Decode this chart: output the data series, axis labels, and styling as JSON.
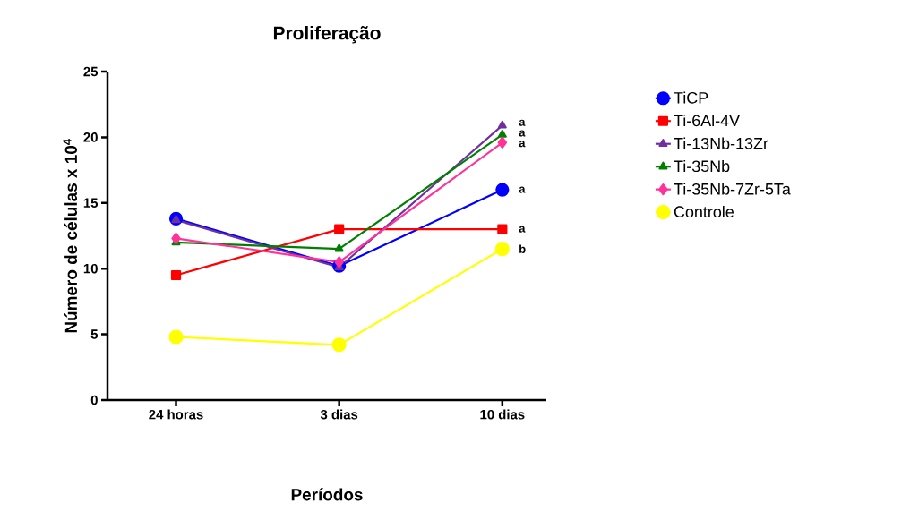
{
  "chart_data": {
    "type": "line",
    "title": "Proliferação",
    "xlabel": "Períodos",
    "ylabel": "Número de células x 10$^{4}$",
    "categories": [
      "24 horas",
      "3 dias",
      "10 dias"
    ],
    "series": [
      {
        "name": "TiCP",
        "color": "#0000ff",
        "marker": "circle",
        "values": [
          13.8,
          10.2,
          16.0
        ]
      },
      {
        "name": "Ti-6Al-4V",
        "color": "#ff0000",
        "marker": "square",
        "values": [
          9.5,
          13.0,
          13.0
        ]
      },
      {
        "name": "Ti-13Nb-13Zr",
        "color": "#7030a0",
        "marker": "triangle",
        "values": [
          13.7,
          10.1,
          20.9
        ]
      },
      {
        "name": "Ti-35Nb",
        "color": "#008000",
        "marker": "triangle",
        "values": [
          12.0,
          11.5,
          20.2
        ]
      },
      {
        "name": "Ti-35Nb-7Zr-5Ta",
        "color": "#ff3399",
        "marker": "diamond",
        "values": [
          12.3,
          10.5,
          19.6
        ]
      },
      {
        "name": "Controle",
        "color": "#ffff00",
        "marker": "circle",
        "values": [
          4.8,
          4.2,
          11.5
        ]
      }
    ],
    "ylim": [
      0,
      25
    ],
    "yticks": [
      0,
      5,
      10,
      15,
      20,
      25
    ],
    "grid": false,
    "legend": "right",
    "annotations": [
      {
        "text": "a",
        "x": "10 dias",
        "y": 21.1
      },
      {
        "text": "a",
        "x": "10 dias",
        "y": 20.3
      },
      {
        "text": "a",
        "x": "10 dias",
        "y": 19.5
      },
      {
        "text": "a",
        "x": "10 dias",
        "y": 16.0
      },
      {
        "text": "a",
        "x": "10 dias",
        "y": 13.0
      },
      {
        "text": "b",
        "x": "10 dias",
        "y": 11.5
      }
    ]
  }
}
